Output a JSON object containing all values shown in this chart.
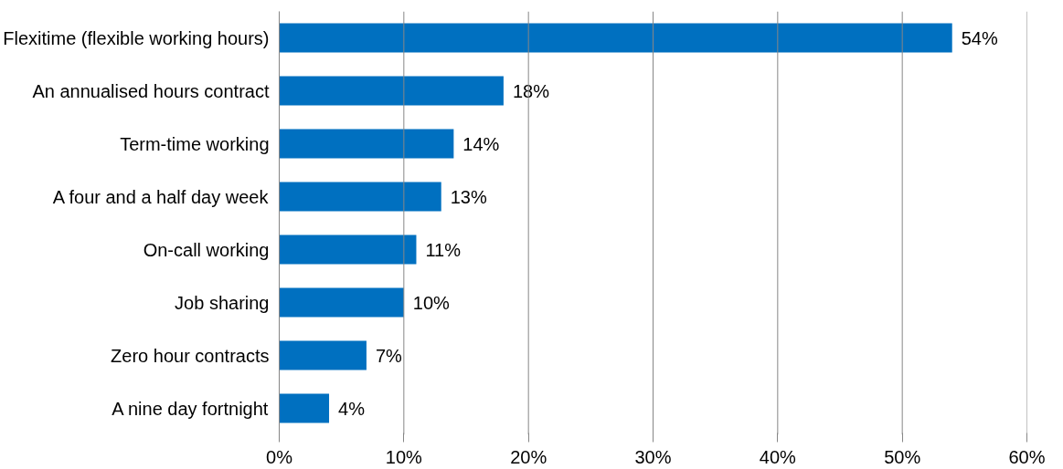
{
  "chart_data": {
    "type": "bar",
    "orientation": "horizontal",
    "categories": [
      "Flexitime (flexible working hours)",
      "An annualised hours contract",
      "Term-time working",
      "A four and a half day week",
      "On-call working",
      "Job sharing",
      "Zero hour contracts",
      "A nine day fortnight"
    ],
    "values": [
      54,
      18,
      14,
      13,
      11,
      10,
      7,
      4
    ],
    "value_labels": [
      "54%",
      "18%",
      "14%",
      "13%",
      "11%",
      "10%",
      "7%",
      "4%"
    ],
    "color": "#0070c0",
    "xlim": [
      0,
      60
    ],
    "xticks": [
      {
        "value": 0,
        "label": "0%"
      },
      {
        "value": 10,
        "label": "10%"
      },
      {
        "value": 20,
        "label": "20%"
      },
      {
        "value": 30,
        "label": "30%"
      },
      {
        "value": 40,
        "label": "40%"
      },
      {
        "value": 50,
        "label": "50%"
      },
      {
        "value": 60,
        "label": "60%"
      }
    ],
    "grid": "x"
  }
}
